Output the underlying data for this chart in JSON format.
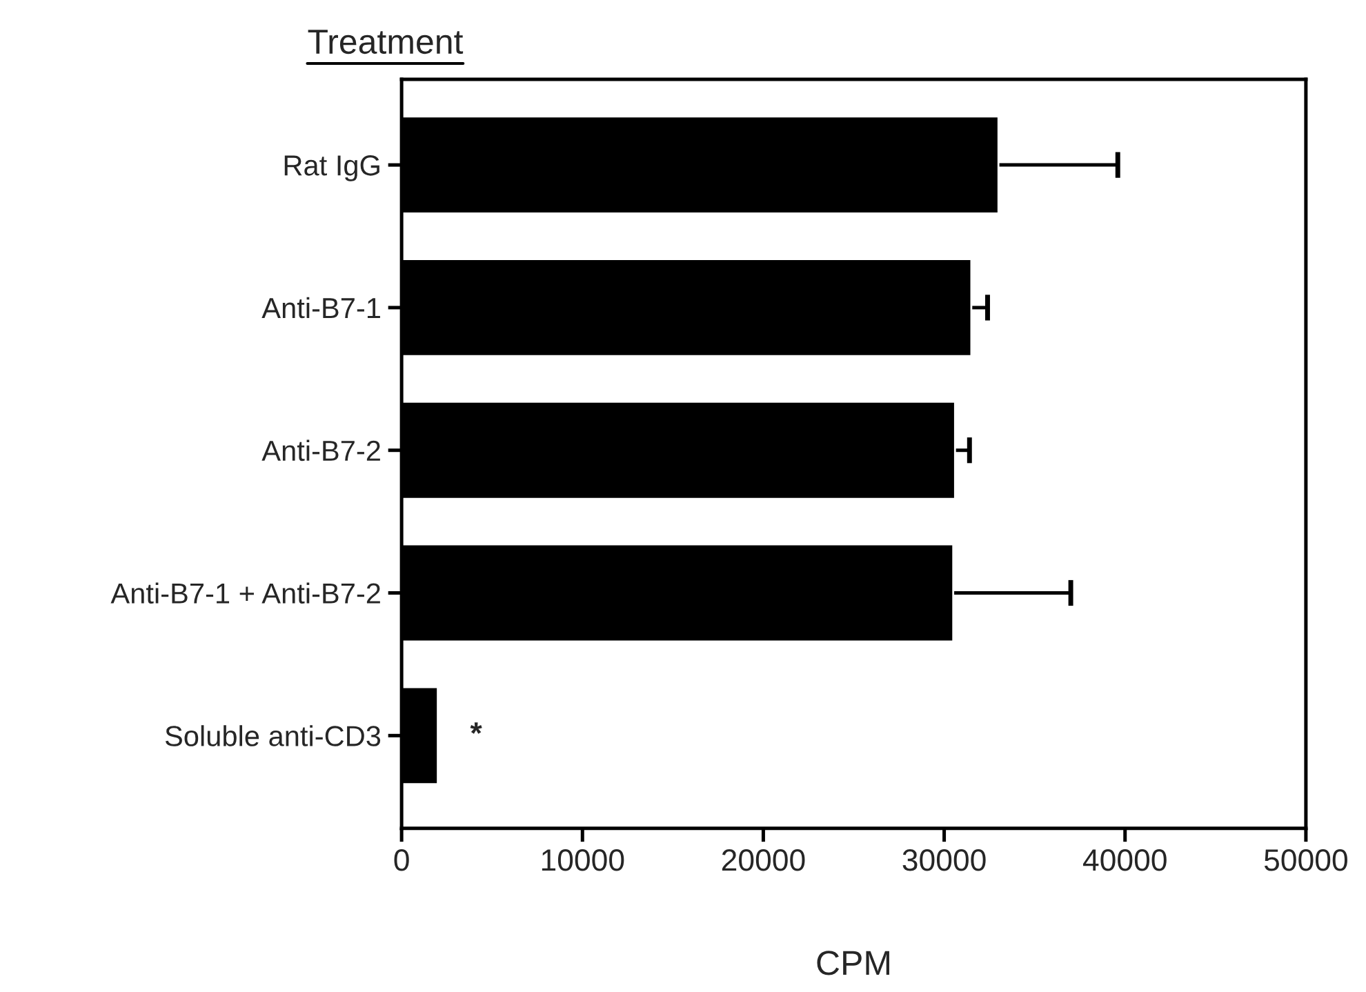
{
  "chart_data": {
    "type": "bar",
    "orientation": "horizontal",
    "ylabel": "Treatment",
    "xlabel": "CPM",
    "categories": [
      "Rat IgG",
      "Anti-B7-1",
      "Anti-B7-2",
      "Anti-B7-1 + Anti-B7-2",
      "Soluble anti-CD3"
    ],
    "values": [
      33000,
      31500,
      30600,
      30500,
      2000
    ],
    "errors": [
      [
        33000,
        39600
      ],
      [
        31500,
        32400
      ],
      [
        30600,
        31400
      ],
      [
        30500,
        37000
      ],
      null
    ],
    "color": "#000000",
    "xlim": [
      0,
      50000
    ],
    "xticks": [
      0,
      10000,
      20000,
      30000,
      40000,
      50000
    ],
    "annotations": [
      "*"
    ],
    "grid": false,
    "legend": false
  }
}
